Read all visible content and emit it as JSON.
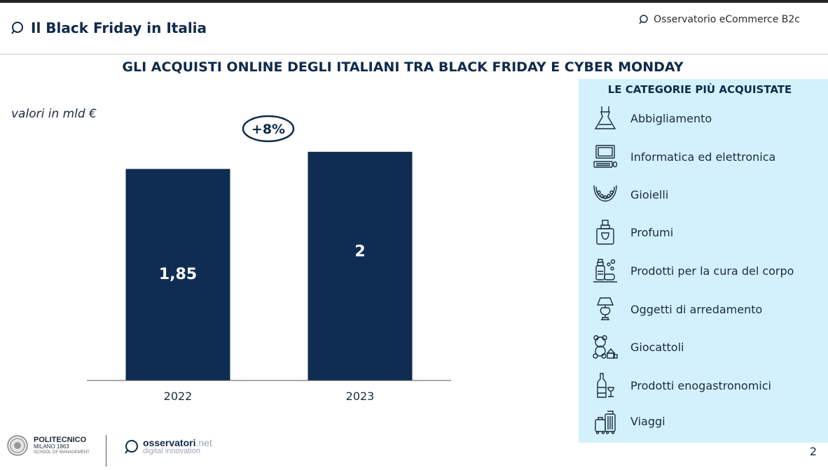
{
  "header": {
    "title": "Il Black Friday in Italia",
    "brand": "Osservatorio eCommerce B2c"
  },
  "chart_title": "GLI ACQUISTI ONLINE DEGLI ITALIANI TRA BLACK FRIDAY E CYBER MONDAY",
  "unit_note": "valori in mld €",
  "chart_data": {
    "type": "bar",
    "title": "GLI ACQUISTI ONLINE DEGLI ITALIANI TRA BLACK FRIDAY E CYBER MONDAY",
    "ylabel": "valori in mld €",
    "categories": [
      "2022",
      "2023"
    ],
    "values": [
      1.85,
      2
    ],
    "data_labels": [
      "1,85",
      "2"
    ],
    "annotation": "+8%",
    "color": "#0f2d52",
    "ylim": [
      0,
      2.3
    ],
    "grid": false
  },
  "categories_panel": {
    "heading": "LE CATEGORIE PIÙ ACQUISTATE",
    "items": [
      {
        "label": "Abbigliamento",
        "icon": "dress-icon"
      },
      {
        "label": "Informatica ed elettronica",
        "icon": "computer-icon"
      },
      {
        "label": "Gioielli",
        "icon": "necklace-icon"
      },
      {
        "label": "Profumi",
        "icon": "perfume-icon"
      },
      {
        "label": "Prodotti per la cura del corpo",
        "icon": "body-care-icon"
      },
      {
        "label": "Oggetti di arredamento",
        "icon": "lamp-icon"
      },
      {
        "label": "Giocattoli",
        "icon": "teddy-bear-icon"
      },
      {
        "label": "Prodotti enogastronomici",
        "icon": "wine-icon"
      },
      {
        "label": "Viaggi",
        "icon": "luggage-icon"
      }
    ]
  },
  "footer": {
    "polimi_name": "POLITECNICO",
    "polimi_city": "MILANO 1863",
    "polimi_school": "SCHOOL OF MANAGEMENT",
    "obs_name": "osservatori",
    "obs_domain": ".net",
    "obs_tagline": "digital innovation",
    "page_number": "2"
  }
}
